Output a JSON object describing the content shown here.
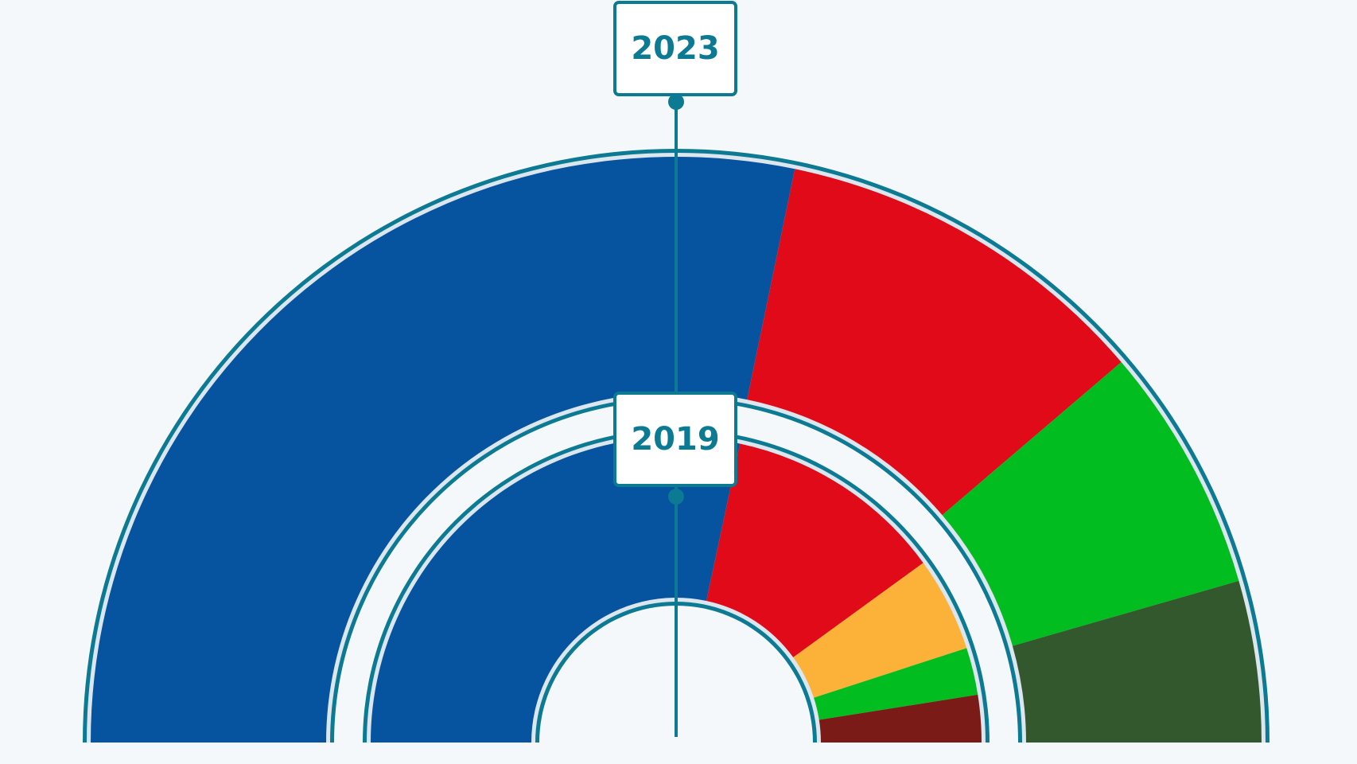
{
  "theme": {
    "outline": "#0b7a92",
    "background": "#f5f8fa",
    "label_bg": "#ffffff"
  },
  "chart_data": [
    {
      "type": "parliament-semicircle",
      "year_label": "2023",
      "segments": [
        {
          "color": "#06539f",
          "fraction": 0.565
        },
        {
          "color": "#e10a18",
          "fraction": 0.21
        },
        {
          "color": "#02bd1f",
          "fraction": 0.136
        },
        {
          "color": "#33582e",
          "fraction": 0.089
        }
      ]
    },
    {
      "type": "parliament-semicircle",
      "year_label": "2019",
      "segments": [
        {
          "color": "#06539f",
          "fraction": 0.567
        },
        {
          "color": "#e10a18",
          "fraction": 0.233
        },
        {
          "color": "#fcb138",
          "fraction": 0.1
        },
        {
          "color": "#02bd1f",
          "fraction": 0.05
        },
        {
          "color": "#7a1b18",
          "fraction": 0.05
        }
      ]
    }
  ]
}
